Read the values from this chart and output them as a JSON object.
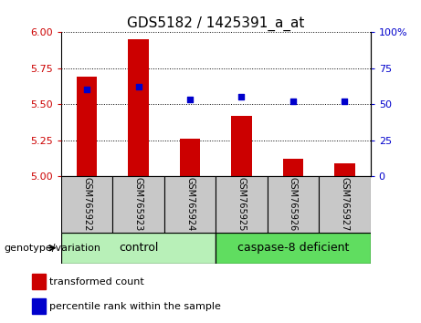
{
  "title": "GDS5182 / 1425391_a_at",
  "samples": [
    "GSM765922",
    "GSM765923",
    "GSM765924",
    "GSM765925",
    "GSM765926",
    "GSM765927"
  ],
  "transformed_counts": [
    5.69,
    5.95,
    5.26,
    5.42,
    5.12,
    5.09
  ],
  "percentile_ranks": [
    60,
    62,
    53,
    55,
    52,
    52
  ],
  "ylim_left": [
    5.0,
    6.0
  ],
  "ylim_right": [
    0,
    100
  ],
  "yticks_left": [
    5.0,
    5.25,
    5.5,
    5.75,
    6.0
  ],
  "yticks_right": [
    0,
    25,
    50,
    75,
    100
  ],
  "bar_color": "#cc0000",
  "dot_color": "#0000cc",
  "bar_bottom": 5.0,
  "groups": [
    {
      "label": "control",
      "indices": [
        0,
        1,
        2
      ]
    },
    {
      "label": "caspase-8 deficient",
      "indices": [
        3,
        4,
        5
      ]
    }
  ],
  "genotype_label": "genotype/variation",
  "legend_items": [
    {
      "label": "transformed count",
      "color": "#cc0000"
    },
    {
      "label": "percentile rank within the sample",
      "color": "#0000cc"
    }
  ],
  "tick_color_left": "#cc0000",
  "tick_color_right": "#0000cc",
  "xlabel_area_color": "#c8c8c8",
  "control_color": "#b8f0b8",
  "deficient_color": "#60dd60",
  "grid_linestyle": ":",
  "bar_width": 0.4
}
